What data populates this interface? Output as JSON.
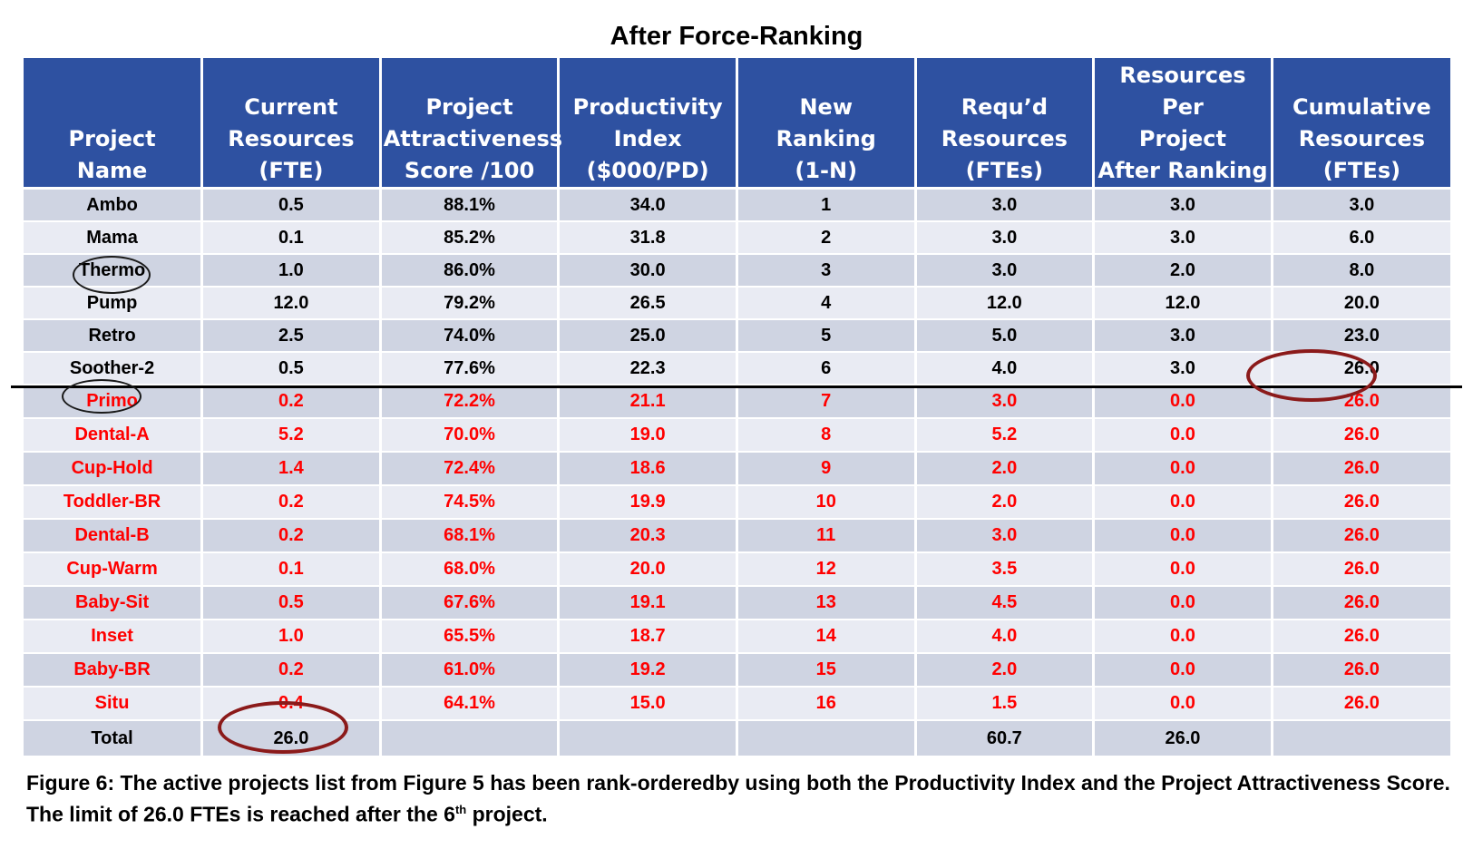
{
  "title": "After Force-Ranking",
  "headers": [
    [
      "Project",
      "Name"
    ],
    [
      "Current",
      "Resources",
      "(FTE)"
    ],
    [
      "Project",
      "Attractiveness",
      "Score /100"
    ],
    [
      "Productivity",
      "Index",
      "($000/PD)"
    ],
    [
      "New",
      "Ranking",
      "(1-N)"
    ],
    [
      "Requ’d",
      "Resources",
      "(FTEs)"
    ],
    [
      "Resources Per",
      "Project",
      "After Ranking"
    ],
    [
      "Cumulative",
      "Resources",
      "(FTEs)"
    ]
  ],
  "rows": [
    [
      "Ambo",
      "0.5",
      "88.1%",
      "34.0",
      "1",
      "3.0",
      "3.0",
      "3.0"
    ],
    [
      "Mama",
      "0.1",
      "85.2%",
      "31.8",
      "2",
      "3.0",
      "3.0",
      "6.0"
    ],
    [
      "Thermo",
      "1.0",
      "86.0%",
      "30.0",
      "3",
      "3.0",
      "2.0",
      "8.0"
    ],
    [
      "Pump",
      "12.0",
      "79.2%",
      "26.5",
      "4",
      "12.0",
      "12.0",
      "20.0"
    ],
    [
      "Retro",
      "2.5",
      "74.0%",
      "25.0",
      "5",
      "5.0",
      "3.0",
      "23.0"
    ],
    [
      "Soother-2",
      "0.5",
      "77.6%",
      "22.3",
      "6",
      "4.0",
      "3.0",
      "26.0"
    ],
    [
      "Primo",
      "0.2",
      "72.2%",
      "21.1",
      "7",
      "3.0",
      "0.0",
      "26.0"
    ],
    [
      "Dental-A",
      "5.2",
      "70.0%",
      "19.0",
      "8",
      "5.2",
      "0.0",
      "26.0"
    ],
    [
      "Cup-Hold",
      "1.4",
      "72.4%",
      "18.6",
      "9",
      "2.0",
      "0.0",
      "26.0"
    ],
    [
      "Toddler-BR",
      "0.2",
      "74.5%",
      "19.9",
      "10",
      "2.0",
      "0.0",
      "26.0"
    ],
    [
      "Dental-B",
      "0.2",
      "68.1%",
      "20.3",
      "11",
      "3.0",
      "0.0",
      "26.0"
    ],
    [
      "Cup-Warm",
      "0.1",
      "68.0%",
      "20.0",
      "12",
      "3.5",
      "0.0",
      "26.0"
    ],
    [
      "Baby-Sit",
      "0.5",
      "67.6%",
      "19.1",
      "13",
      "4.5",
      "0.0",
      "26.0"
    ],
    [
      "Inset",
      "1.0",
      "65.5%",
      "18.7",
      "14",
      "4.0",
      "0.0",
      "26.0"
    ],
    [
      "Baby-BR",
      "0.2",
      "61.0%",
      "19.2",
      "15",
      "2.0",
      "0.0",
      "26.0"
    ],
    [
      "Situ",
      "0.4",
      "64.1%",
      "15.0",
      "16",
      "1.5",
      "0.0",
      "26.0"
    ]
  ],
  "total": [
    "Total",
    "26.0",
    "",
    "",
    "",
    "60.7",
    "26.0",
    ""
  ],
  "caption": {
    "before": "Figure 6: The active projects list from Figure 5 has been rank-orderedby using both the Productivity Index and the Project Attractiveness Score. The limit of 26.0 FTEs is reached after the 6",
    "sup": "th",
    "after": " project."
  },
  "colors": {
    "header_bg": "#2e51a1",
    "row_dark": "#cfd4e2",
    "row_light": "#e9ebf3",
    "below_cutoff_text": "#ff0000",
    "red_ring": "#8b1a1a"
  }
}
